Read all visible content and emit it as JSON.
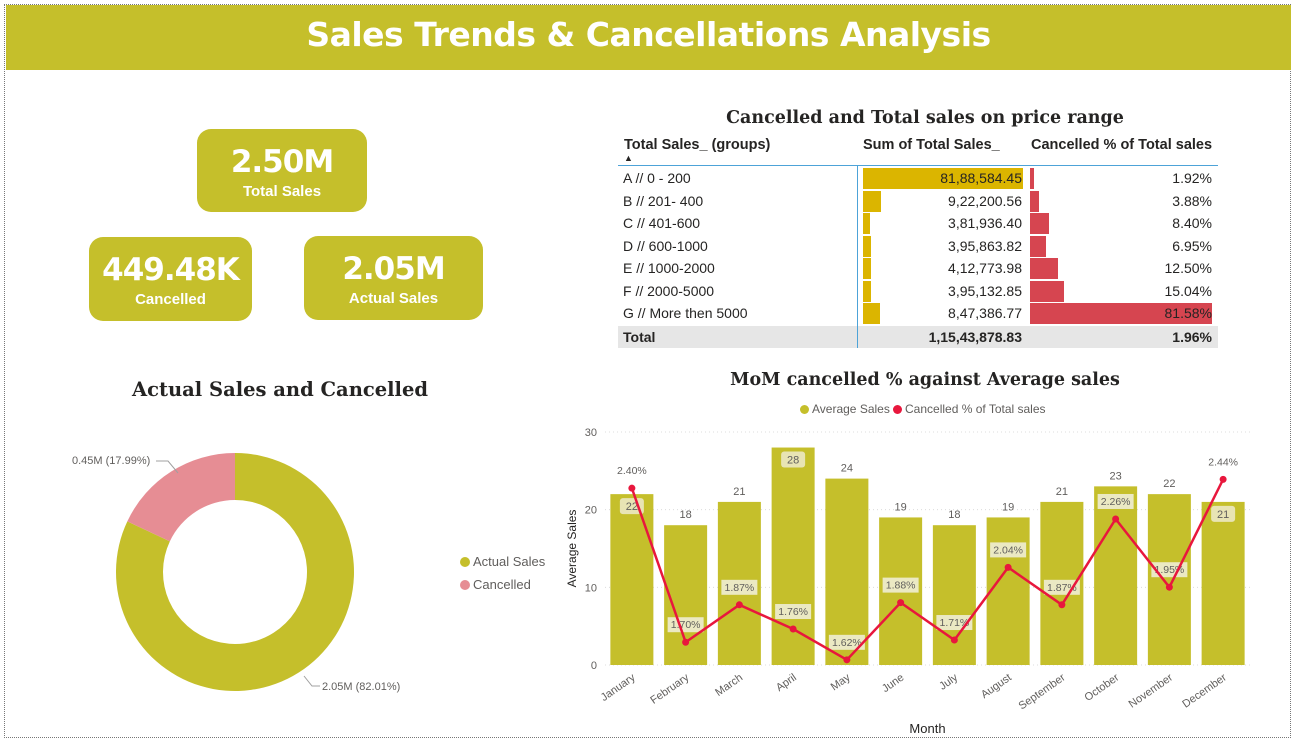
{
  "header": {
    "title": "Sales Trends & Cancellations Analysis"
  },
  "kpis": {
    "total_sales": {
      "value": "2.50M",
      "label": "Total Sales"
    },
    "cancelled": {
      "value": "449.48K",
      "label": "Cancelled"
    },
    "actual_sales": {
      "value": "2.05M",
      "label": "Actual Sales"
    }
  },
  "colors": {
    "accent": "#c5bf2b",
    "cancelled_pink": "#e68d94",
    "sum_bar": "#dbb500",
    "pct_bar": "#d64550",
    "line": "#e8173d"
  },
  "table": {
    "title": "Cancelled and Total sales on price range",
    "headers": [
      "Total Sales_ (groups)",
      "Sum of Total Sales_",
      "Cancelled % of Total sales"
    ],
    "rows": [
      {
        "name": "A // 0 - 200",
        "sum": "81,88,584.45",
        "sum_value": 8188584.45,
        "pct": "1.92%",
        "pct_value": 1.92
      },
      {
        "name": "B // 201- 400",
        "sum": "9,22,200.56",
        "sum_value": 922200.56,
        "pct": "3.88%",
        "pct_value": 3.88
      },
      {
        "name": "C // 401-600",
        "sum": "3,81,936.40",
        "sum_value": 381936.4,
        "pct": "8.40%",
        "pct_value": 8.4
      },
      {
        "name": "D // 600-1000",
        "sum": "3,95,863.82",
        "sum_value": 395863.82,
        "pct": "6.95%",
        "pct_value": 6.95
      },
      {
        "name": "E // 1000-2000",
        "sum": "4,12,773.98",
        "sum_value": 412773.98,
        "pct": "12.50%",
        "pct_value": 12.5
      },
      {
        "name": "F // 2000-5000",
        "sum": "3,95,132.85",
        "sum_value": 395132.85,
        "pct": "15.04%",
        "pct_value": 15.04
      },
      {
        "name": "G // More then 5000",
        "sum": "8,47,386.77",
        "sum_value": 847386.77,
        "pct": "81.58%",
        "pct_value": 81.58
      }
    ],
    "total": {
      "name": "Total",
      "sum": "1,15,43,878.83",
      "pct": "1.96%"
    }
  },
  "donut": {
    "title": "Actual Sales and Cancelled",
    "legend": [
      "Actual Sales",
      "Cancelled"
    ],
    "labels": {
      "actual": "2.05M (82.01%)",
      "cancelled": "0.45M (17.99%)"
    }
  },
  "combo": {
    "title": "MoM cancelled % against Average sales",
    "legend": [
      "Average Sales",
      "Cancelled % of Total sales"
    ]
  },
  "chart_data": [
    {
      "type": "pie",
      "title": "Actual Sales and Cancelled",
      "categories": [
        "Actual Sales",
        "Cancelled"
      ],
      "values": [
        2.05,
        0.45
      ],
      "percents": [
        82.01,
        17.99
      ],
      "legend_position": "right"
    },
    {
      "type": "bar",
      "title": "MoM cancelled % against Average sales",
      "xlabel": "Month",
      "ylabel": "Average Sales",
      "ylim": [
        0,
        30
      ],
      "yticks": [
        "0",
        "10",
        "20",
        "30"
      ],
      "legend_position": "top",
      "categories": [
        "January",
        "February",
        "March",
        "April",
        "May",
        "June",
        "July",
        "August",
        "September",
        "October",
        "November",
        "December"
      ],
      "series": [
        {
          "name": "Average Sales",
          "values": [
            22,
            18,
            21,
            28,
            24,
            19,
            18,
            19,
            21,
            23,
            22,
            21
          ],
          "labels": [
            "22",
            "18",
            "21",
            "28",
            "24",
            "19",
            "18",
            "19",
            "21",
            "23",
            "22",
            "21"
          ]
        },
        {
          "name": "Cancelled % of Total sales",
          "values": [
            2.4,
            1.7,
            1.87,
            1.76,
            1.62,
            1.88,
            1.71,
            2.04,
            1.87,
            2.26,
            1.95,
            2.44
          ],
          "labels": [
            "2.40%",
            "1.70%",
            "1.87%",
            "1.76%",
            "1.62%",
            "1.88%",
            "1.71%",
            "2.04%",
            "1.87%",
            "2.26%",
            "1.95%",
            "2.44%"
          ]
        }
      ]
    }
  ]
}
